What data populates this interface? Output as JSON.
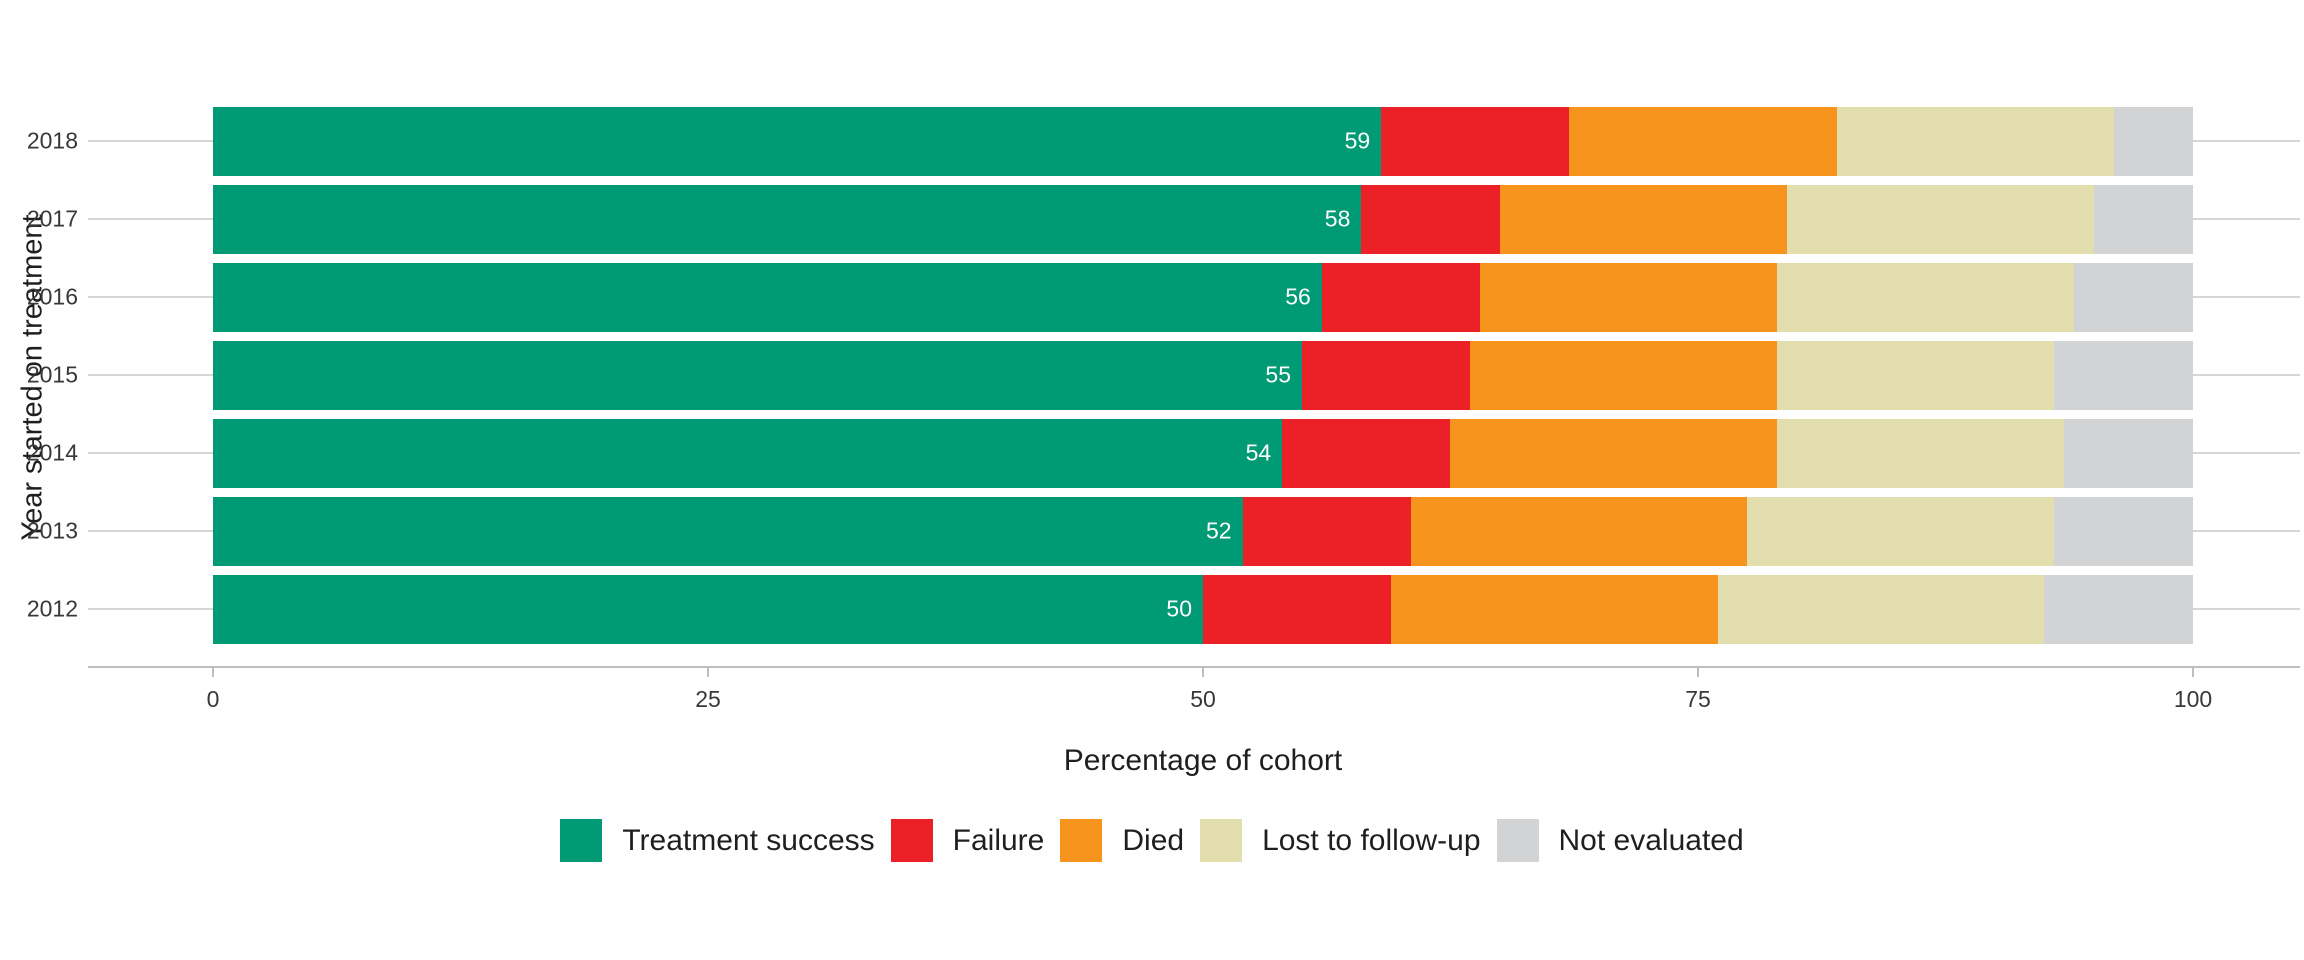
{
  "chart_data": {
    "type": "bar",
    "orientation": "horizontal",
    "stacked": true,
    "title": "",
    "xlabel": "Percentage of cohort",
    "ylabel": "Year started on treatment",
    "categories": [
      "2018",
      "2017",
      "2016",
      "2015",
      "2014",
      "2013",
      "2012"
    ],
    "series": [
      {
        "name": "Treatment success",
        "color": "#009a75",
        "values": [
          59,
          58,
          56,
          55,
          54,
          52,
          50
        ]
      },
      {
        "name": "Failure",
        "color": "#ec2127",
        "values": [
          9.5,
          7,
          8,
          8.5,
          8.5,
          8.5,
          9.5
        ]
      },
      {
        "name": "Died",
        "color": "#f7941e",
        "values": [
          13.5,
          14.5,
          15,
          15.5,
          16.5,
          17,
          16.5
        ]
      },
      {
        "name": "Lost to follow-up",
        "color": "#e3dead",
        "values": [
          14,
          15.5,
          15,
          14,
          14.5,
          15.5,
          16.5
        ]
      },
      {
        "name": "Not evaluated",
        "color": "#d1d3d4",
        "values": [
          4,
          5,
          6,
          7,
          6.5,
          7,
          7.5
        ]
      }
    ],
    "bar_value_labels": [
      "59",
      "58",
      "56",
      "55",
      "54",
      "52",
      "50"
    ],
    "bar_value_label_color": "#ffffff",
    "xlim": [
      0,
      100
    ],
    "xticks": [
      0,
      25,
      50,
      75,
      100
    ],
    "xtick_labels": [
      "0",
      "25",
      "50",
      "75",
      "100"
    ],
    "grid": "horizontal row lines, light gray",
    "legend_position": "bottom-center",
    "axis_line_color": "#bebebe",
    "gridline_color": "#d6d6d6"
  }
}
